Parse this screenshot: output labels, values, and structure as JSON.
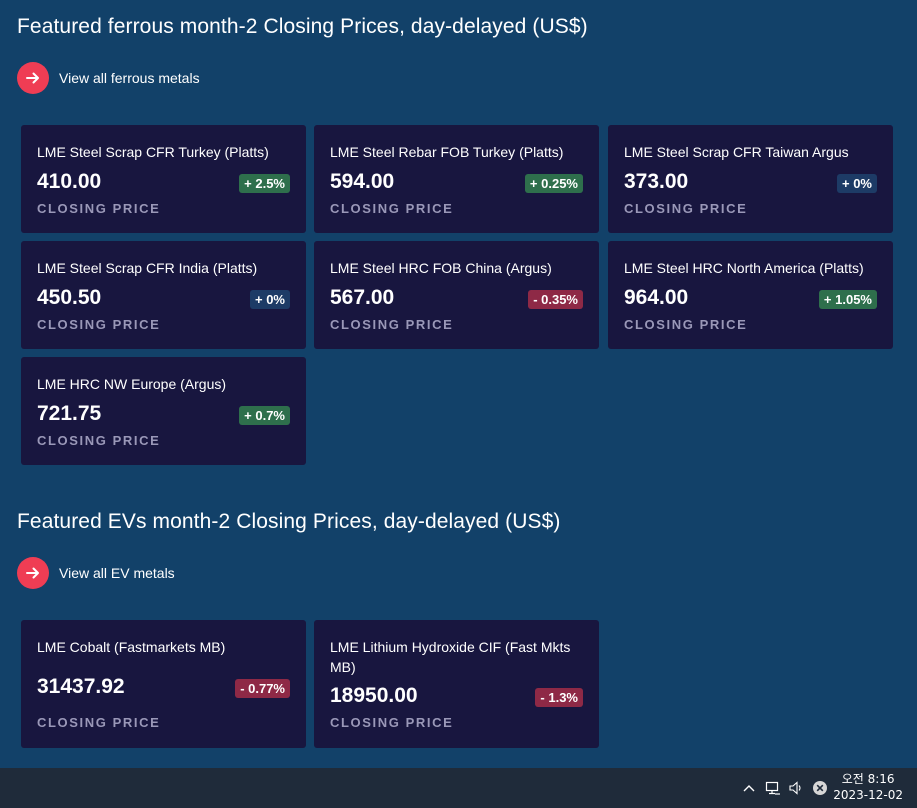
{
  "sections": [
    {
      "title": "Featured ferrous month-2 Closing Prices, day-delayed (US$)",
      "view_all_label": "View all ferrous metals",
      "cards": [
        {
          "name": "LME Steel Scrap CFR Turkey (Platts)",
          "price": "410.00",
          "change": "+ 2.5%",
          "trend": "up",
          "caption": "CLOSING PRICE"
        },
        {
          "name": "LME Steel Rebar FOB Turkey (Platts)",
          "price": "594.00",
          "change": "+ 0.25%",
          "trend": "up",
          "caption": "CLOSING PRICE"
        },
        {
          "name": "LME Steel Scrap CFR Taiwan Argus",
          "price": "373.00",
          "change": "+ 0%",
          "trend": "flat",
          "caption": "CLOSING PRICE"
        },
        {
          "name": "LME Steel Scrap CFR India (Platts)",
          "price": "450.50",
          "change": "+ 0%",
          "trend": "flat",
          "caption": "CLOSING PRICE"
        },
        {
          "name": "LME Steel HRC FOB China (Argus)",
          "price": "567.00",
          "change": "- 0.35%",
          "trend": "down",
          "caption": "CLOSING PRICE"
        },
        {
          "name": "LME Steel HRC North America (Platts)",
          "price": "964.00",
          "change": "+ 1.05%",
          "trend": "up",
          "caption": "CLOSING PRICE"
        },
        {
          "name": "LME HRC NW Europe (Argus)",
          "price": "721.75",
          "change": "+ 0.7%",
          "trend": "up",
          "caption": "CLOSING PRICE"
        }
      ]
    },
    {
      "title": "Featured EVs month-2 Closing Prices, day-delayed (US$)",
      "view_all_label": "View all EV metals",
      "cards": [
        {
          "name": "LME Cobalt (Fastmarkets MB)",
          "price": "31437.92",
          "change": "- 0.77%",
          "trend": "down",
          "caption": "CLOSING PRICE"
        },
        {
          "name": "LME Lithium Hydroxide CIF (Fast Mkts MB)",
          "price": "18950.00",
          "change": "- 1.3%",
          "trend": "down",
          "caption": "CLOSING PRICE"
        }
      ]
    }
  ],
  "taskbar": {
    "time": "오전 8:16",
    "date": "2023-12-02",
    "icons": [
      "chevron-up-icon",
      "network-icon",
      "volume-icon",
      "close-circle-icon"
    ]
  },
  "colors": {
    "background": "#124169",
    "card": "#18163f",
    "accent": "#ef3d54",
    "badge_up": "#2e6f4c",
    "badge_flat": "#1d3b66",
    "badge_down": "#8e2946"
  }
}
